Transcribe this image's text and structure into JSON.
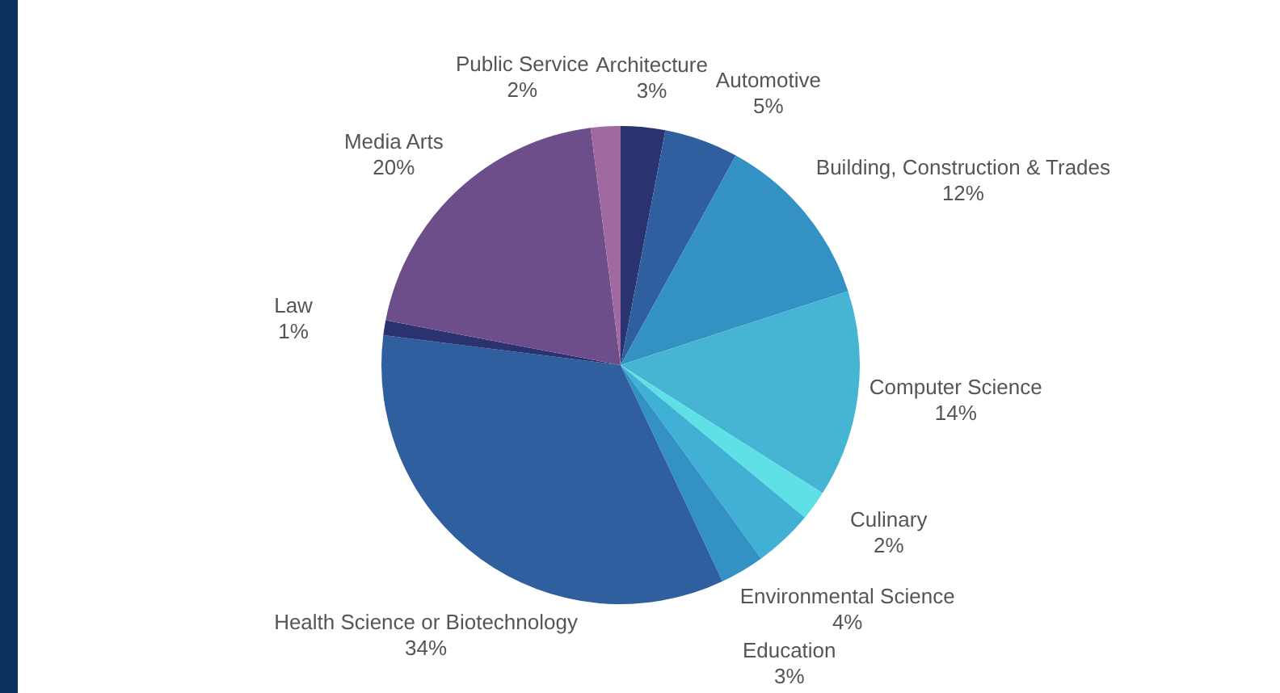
{
  "chart_data": {
    "type": "pie",
    "categories": [
      "Architecture",
      "Automotive",
      "Building, Construction & Trades",
      "Computer Science",
      "Culinary",
      "Environmental Science",
      "Education",
      "Health Science or Biotechnology",
      "Law",
      "Media Arts",
      "Public Service"
    ],
    "values": [
      3,
      5,
      12,
      14,
      2,
      4,
      3,
      34,
      1,
      20,
      2
    ],
    "value_labels": [
      "3%",
      "5%",
      "12%",
      "14%",
      "2%",
      "4%",
      "3%",
      "34%",
      "1%",
      "20%",
      "2%"
    ],
    "colors": [
      "#2b3270",
      "#2f5f9e",
      "#3391c4",
      "#45b5d3",
      "#5fe0e6",
      "#40b0d5",
      "#3391c4",
      "#2f5f9e",
      "#2b3270",
      "#6d4e8a",
      "#a0699f"
    ],
    "legend": false
  }
}
